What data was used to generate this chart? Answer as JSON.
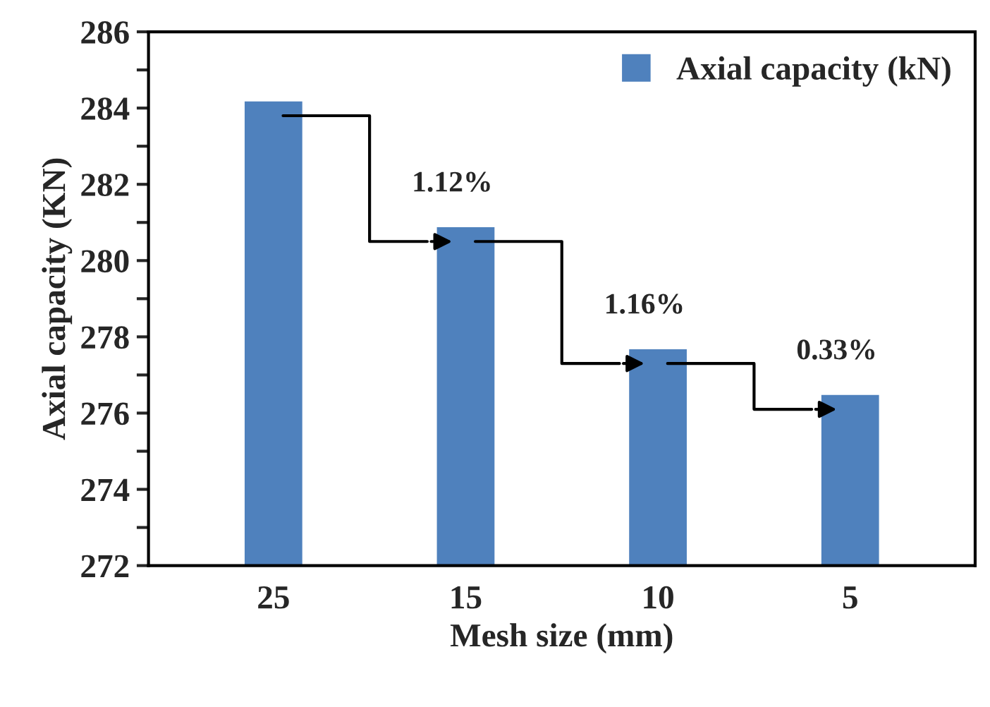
{
  "chart_data": {
    "type": "bar",
    "xlabel": "Mesh size (mm)",
    "ylabel": "Axial capacity (KN)",
    "categories": [
      "25",
      "15",
      "10",
      "5"
    ],
    "series": [
      {
        "name": "Axial capacity (kN)",
        "color": "#4f81bd",
        "values": [
          284.2,
          280.9,
          277.7,
          276.5
        ]
      }
    ],
    "ylim": [
      272,
      286
    ],
    "yticks": [
      272,
      {
        "value": 273,
        "label": null
      },
      274,
      {
        "value": 275,
        "label": null
      },
      276,
      {
        "value": 277,
        "label": null
      },
      278,
      {
        "value": 279,
        "label": null
      },
      280,
      {
        "value": 281,
        "label": null
      },
      282,
      {
        "value": 283,
        "label": null
      },
      284,
      {
        "value": 285,
        "label": null
      },
      286
    ],
    "annotations": [
      "1.12%",
      "1.16%",
      "0.33%"
    ],
    "grid": false,
    "legend": "top right"
  }
}
